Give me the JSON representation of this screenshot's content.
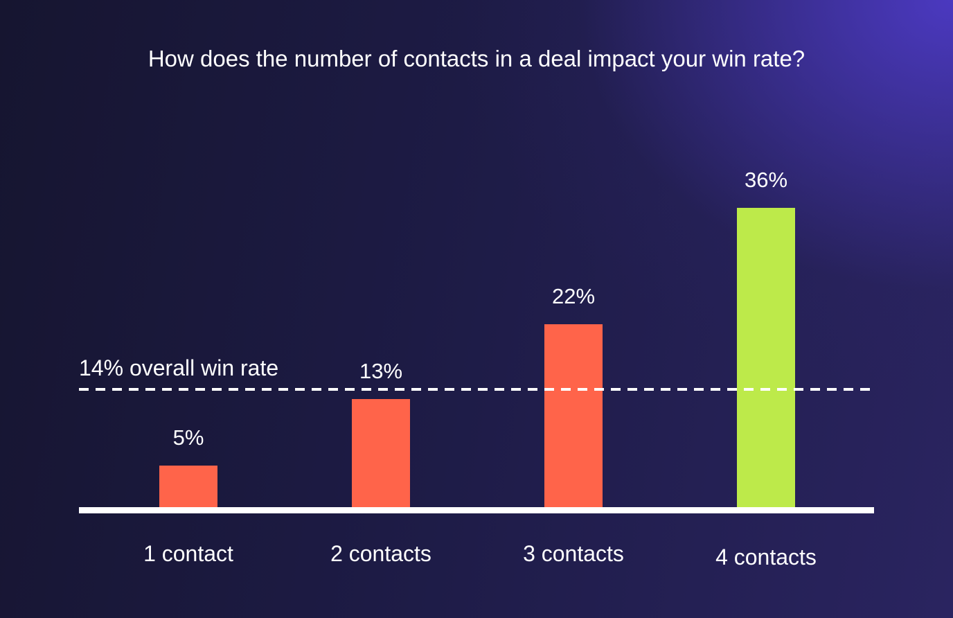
{
  "chart_data": {
    "type": "bar",
    "title": "How does the number of contacts in a deal impact your win rate?",
    "xlabel": "",
    "ylabel": "",
    "categories": [
      "1 contact",
      "2 contacts",
      "3 contacts",
      "4 contacts"
    ],
    "values": [
      5,
      13,
      22,
      36
    ],
    "value_labels": [
      "5%",
      "13%",
      "22%",
      "36%"
    ],
    "unit": "%",
    "ylim": [
      0,
      40
    ],
    "grid": false,
    "legend": "none",
    "reference_line": {
      "value": 14,
      "label": "14% overall win rate",
      "style": "dashed",
      "color": "#ffffff"
    },
    "bar_colors": [
      "#ff644a",
      "#ff644a",
      "#ff644a",
      "#bdea4a"
    ]
  },
  "colors": {
    "bar_default": "#ff644a",
    "bar_highlight": "#bdea4a",
    "baseline": "#ffffff",
    "text": "#ffffff",
    "background_dark": "#161530",
    "background_accent": "#4b39c0"
  }
}
